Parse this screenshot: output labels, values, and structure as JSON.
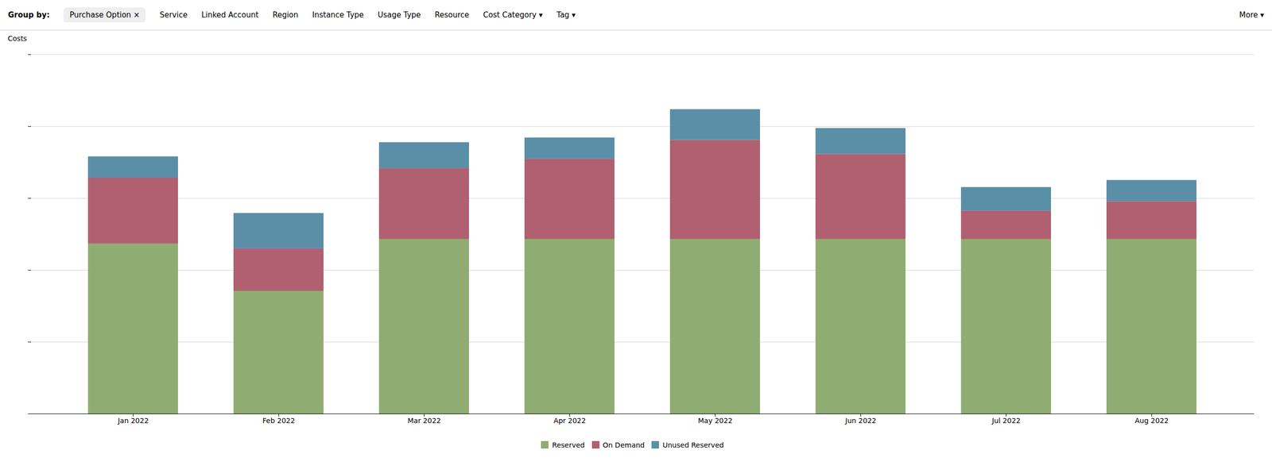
{
  "chart_data": {
    "type": "bar",
    "stacked": true,
    "annotations": [
      "Group by:",
      "Purchase Option  ×",
      "Service",
      "Linked Account",
      "Region",
      "Instance Type",
      "Usage Type",
      "Resource",
      "Cost Category ▾",
      "Tag ▾",
      "More ▾"
    ],
    "y_label": "Costs",
    "categories": [
      "Jan 2022",
      "Feb 2022",
      "Mar 2022",
      "Apr 2022",
      "May 2022",
      "Jun 2022",
      "Jul 2022",
      "Aug 2022"
    ],
    "series": [
      {
        "name": "Reserved",
        "color": "#8fad72",
        "values": [
          3.6,
          2.6,
          3.7,
          3.7,
          3.7,
          3.7,
          3.7,
          3.7
        ]
      },
      {
        "name": "On Demand",
        "color": "#b06070",
        "values": [
          1.4,
          0.9,
          1.5,
          1.7,
          2.1,
          1.8,
          0.6,
          0.8
        ]
      },
      {
        "name": "Unused Reserved",
        "color": "#5b8fa8",
        "values": [
          0.45,
          0.75,
          0.55,
          0.45,
          0.65,
          0.55,
          0.5,
          0.45
        ]
      }
    ],
    "ylim": [
      0,
      7.611
    ],
    "yticks": [
      0,
      1.5222,
      3.0444,
      4.5666,
      6.0888,
      7.611
    ],
    "grid": true,
    "tick_labels": "x",
    "legend": "bottom"
  }
}
